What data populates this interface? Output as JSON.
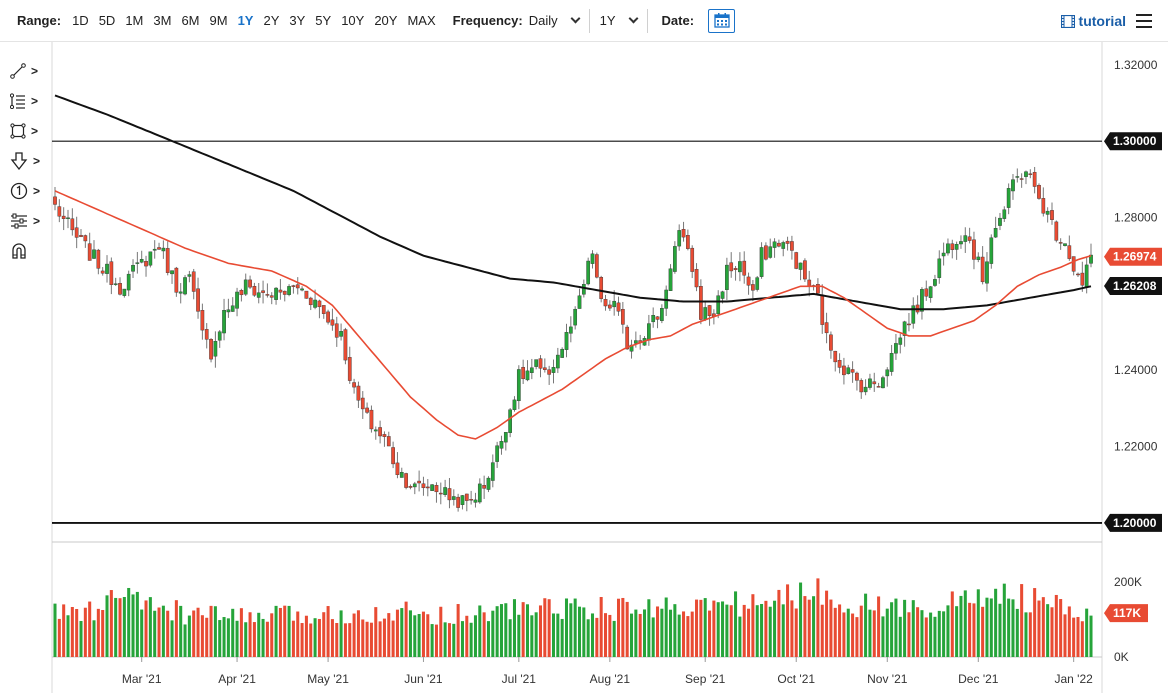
{
  "toolbar": {
    "range_label": "Range:",
    "ranges": [
      "1D",
      "5D",
      "1M",
      "3M",
      "6M",
      "9M",
      "1Y",
      "2Y",
      "3Y",
      "5Y",
      "10Y",
      "20Y",
      "MAX"
    ],
    "active_range": "1Y",
    "frequency_label": "Frequency:",
    "frequency_value": "Daily",
    "period_value": "1Y",
    "date_label": "Date:",
    "calendar_icon": "calendar-icon",
    "tutorial_label": "tutorial",
    "menu_icon": "hamburger-menu-icon"
  },
  "sidebar": {
    "tools": [
      {
        "icon": "line-tool-icon"
      },
      {
        "icon": "fibonacci-tool-icon"
      },
      {
        "icon": "shape-tool-icon"
      },
      {
        "icon": "arrow-down-tool-icon"
      },
      {
        "icon": "number-marker-tool-icon"
      },
      {
        "icon": "indicators-tool-icon"
      },
      {
        "icon": "magnet-icon"
      }
    ]
  },
  "chart_data": {
    "type": "candlestick",
    "x_ticks": [
      "Mar '21",
      "Apr '21",
      "May '21",
      "Jun '21",
      "Jul '21",
      "Aug '21",
      "Sep '21",
      "Oct '21",
      "Nov '21",
      "Dec '21",
      "Jan '22"
    ],
    "y_ticks": [
      "1.32000",
      "1.28000",
      "1.24000",
      "1.22000"
    ],
    "ylim": [
      1.195,
      1.326
    ],
    "horizontal_lines": [
      {
        "value": 1.3,
        "label": "1.30000"
      },
      {
        "value": 1.2,
        "label": "1.20000"
      }
    ],
    "price_labels": [
      {
        "value": 1.26974,
        "label": "1.26974",
        "color": "#e84b33"
      },
      {
        "value": 1.26208,
        "label": "1.26208",
        "color": "#111111"
      }
    ],
    "colors": {
      "up": "#26a43a",
      "down": "#e84b33",
      "ma50": "#e84b33",
      "ma200": "#111111"
    },
    "price_path": [
      [
        0,
        1.283
      ],
      [
        4,
        1.276
      ],
      [
        10,
        1.268
      ],
      [
        15,
        1.262
      ],
      [
        20,
        1.268
      ],
      [
        24,
        1.273
      ],
      [
        28,
        1.262
      ],
      [
        31,
        1.264
      ],
      [
        34,
        1.249
      ],
      [
        36,
        1.245
      ],
      [
        39,
        1.255
      ],
      [
        44,
        1.262
      ],
      [
        48,
        1.26
      ],
      [
        52,
        1.26
      ],
      [
        56,
        1.262
      ],
      [
        60,
        1.258
      ],
      [
        64,
        1.252
      ],
      [
        66,
        1.249
      ],
      [
        69,
        1.234
      ],
      [
        72,
        1.227
      ],
      [
        76,
        1.222
      ],
      [
        79,
        1.214
      ],
      [
        83,
        1.209
      ],
      [
        87,
        1.21
      ],
      [
        91,
        1.207
      ],
      [
        95,
        1.205
      ],
      [
        99,
        1.21
      ],
      [
        103,
        1.222
      ],
      [
        107,
        1.238
      ],
      [
        111,
        1.241
      ],
      [
        113,
        1.238
      ],
      [
        117,
        1.246
      ],
      [
        120,
        1.254
      ],
      [
        124,
        1.271
      ],
      [
        126,
        1.257
      ],
      [
        129,
        1.257
      ],
      [
        132,
        1.247
      ],
      [
        136,
        1.25
      ],
      [
        140,
        1.256
      ],
      [
        142,
        1.268
      ],
      [
        144,
        1.276
      ],
      [
        147,
        1.267
      ],
      [
        149,
        1.255
      ],
      [
        152,
        1.255
      ],
      [
        155,
        1.266
      ],
      [
        158,
        1.268
      ],
      [
        161,
        1.259
      ],
      [
        163,
        1.27
      ],
      [
        167,
        1.274
      ],
      [
        170,
        1.271
      ],
      [
        173,
        1.264
      ],
      [
        176,
        1.259
      ],
      [
        178,
        1.248
      ],
      [
        181,
        1.242
      ],
      [
        185,
        1.237
      ],
      [
        187,
        1.236
      ],
      [
        190,
        1.237
      ],
      [
        193,
        1.244
      ],
      [
        196,
        1.252
      ],
      [
        199,
        1.257
      ],
      [
        202,
        1.263
      ],
      [
        205,
        1.271
      ],
      [
        208,
        1.275
      ],
      [
        210,
        1.277
      ],
      [
        212,
        1.271
      ],
      [
        214,
        1.264
      ],
      [
        216,
        1.276
      ],
      [
        219,
        1.282
      ],
      [
        221,
        1.289
      ],
      [
        224,
        1.293
      ],
      [
        226,
        1.287
      ],
      [
        228,
        1.283
      ],
      [
        231,
        1.276
      ],
      [
        233,
        1.274
      ],
      [
        235,
        1.267
      ],
      [
        237,
        1.262
      ],
      [
        239,
        1.27
      ]
    ],
    "ma200_path": [
      [
        0,
        1.312
      ],
      [
        12,
        1.307
      ],
      [
        25,
        1.301
      ],
      [
        40,
        1.294
      ],
      [
        55,
        1.287
      ],
      [
        65,
        1.281
      ],
      [
        75,
        1.275
      ],
      [
        85,
        1.27
      ],
      [
        95,
        1.267
      ],
      [
        105,
        1.264
      ],
      [
        115,
        1.263
      ],
      [
        125,
        1.261
      ],
      [
        135,
        1.259
      ],
      [
        145,
        1.258
      ],
      [
        155,
        1.258
      ],
      [
        165,
        1.259
      ],
      [
        175,
        1.26
      ],
      [
        185,
        1.258
      ],
      [
        195,
        1.256
      ],
      [
        205,
        1.256
      ],
      [
        215,
        1.257
      ],
      [
        225,
        1.259
      ],
      [
        235,
        1.261
      ],
      [
        239,
        1.262
      ]
    ],
    "ma50_path": [
      [
        0,
        1.287
      ],
      [
        10,
        1.282
      ],
      [
        20,
        1.277
      ],
      [
        30,
        1.272
      ],
      [
        40,
        1.268
      ],
      [
        50,
        1.266
      ],
      [
        58,
        1.262
      ],
      [
        64,
        1.257
      ],
      [
        70,
        1.249
      ],
      [
        76,
        1.241
      ],
      [
        82,
        1.233
      ],
      [
        88,
        1.227
      ],
      [
        93,
        1.223
      ],
      [
        97,
        1.222
      ],
      [
        102,
        1.225
      ],
      [
        107,
        1.229
      ],
      [
        112,
        1.232
      ],
      [
        117,
        1.235
      ],
      [
        122,
        1.239
      ],
      [
        127,
        1.243
      ],
      [
        132,
        1.246
      ],
      [
        137,
        1.248
      ],
      [
        142,
        1.249
      ],
      [
        147,
        1.252
      ],
      [
        152,
        1.254
      ],
      [
        157,
        1.256
      ],
      [
        162,
        1.258
      ],
      [
        167,
        1.26
      ],
      [
        172,
        1.262
      ],
      [
        177,
        1.262
      ],
      [
        182,
        1.259
      ],
      [
        187,
        1.255
      ],
      [
        192,
        1.251
      ],
      [
        197,
        1.249
      ],
      [
        202,
        1.249
      ],
      [
        207,
        1.251
      ],
      [
        212,
        1.253
      ],
      [
        217,
        1.257
      ],
      [
        222,
        1.262
      ],
      [
        227,
        1.265
      ],
      [
        232,
        1.267
      ],
      [
        236,
        1.269
      ],
      [
        239,
        1.27
      ]
    ],
    "volume_ticks": [
      "200K",
      "0K"
    ],
    "volume_label": "117K",
    "volume_max": 280,
    "volume_profile": [
      [
        0,
        120
      ],
      [
        10,
        120
      ],
      [
        14,
        160
      ],
      [
        16,
        190
      ],
      [
        18,
        140
      ],
      [
        22,
        140
      ],
      [
        30,
        115
      ],
      [
        35,
        110
      ],
      [
        40,
        110
      ],
      [
        45,
        105
      ],
      [
        50,
        110
      ],
      [
        55,
        110
      ],
      [
        60,
        110
      ],
      [
        65,
        115
      ],
      [
        70,
        120
      ],
      [
        75,
        120
      ],
      [
        80,
        120
      ],
      [
        85,
        115
      ],
      [
        90,
        115
      ],
      [
        95,
        115
      ],
      [
        100,
        120
      ],
      [
        105,
        125
      ],
      [
        110,
        130
      ],
      [
        115,
        135
      ],
      [
        120,
        130
      ],
      [
        125,
        130
      ],
      [
        130,
        125
      ],
      [
        135,
        130
      ],
      [
        140,
        135
      ],
      [
        145,
        140
      ],
      [
        150,
        135
      ],
      [
        155,
        140
      ],
      [
        160,
        145
      ],
      [
        165,
        140
      ],
      [
        170,
        165
      ],
      [
        175,
        175
      ],
      [
        180,
        160
      ],
      [
        185,
        140
      ],
      [
        190,
        135
      ],
      [
        195,
        130
      ],
      [
        200,
        130
      ],
      [
        205,
        140
      ],
      [
        210,
        150
      ],
      [
        215,
        160
      ],
      [
        218,
        180
      ],
      [
        220,
        165
      ],
      [
        225,
        150
      ],
      [
        230,
        145
      ],
      [
        233,
        115
      ],
      [
        236,
        110
      ],
      [
        239,
        117
      ]
    ]
  }
}
